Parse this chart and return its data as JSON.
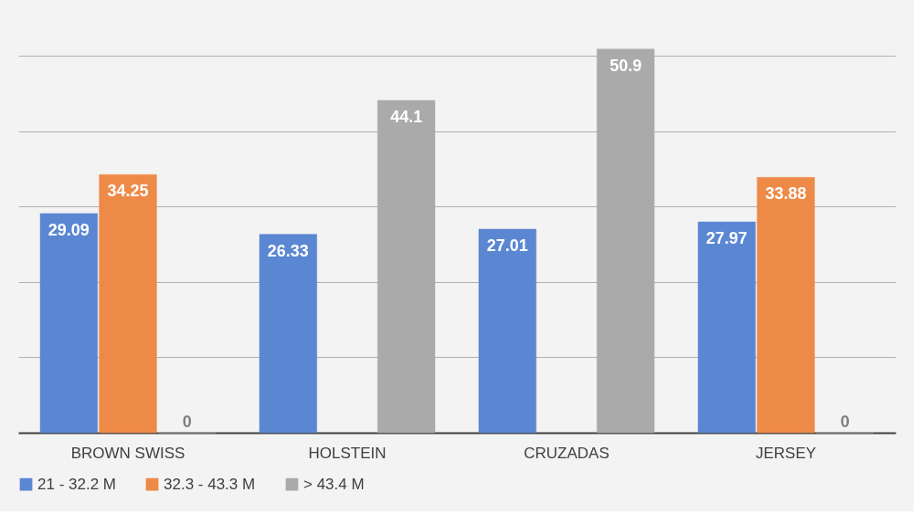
{
  "chart_data": {
    "type": "bar",
    "categories": [
      "BROWN SWISS",
      "HOLSTEIN",
      "CRUZADAS",
      "JERSEY"
    ],
    "series": [
      {
        "name": "21 - 32.2 M",
        "color": "#5b87d2",
        "values": [
          29.09,
          26.33,
          27.01,
          27.97
        ]
      },
      {
        "name": "32.3 - 43.3 M",
        "color": "#ee8a47",
        "values": [
          34.25,
          null,
          null,
          33.88
        ]
      },
      {
        "name": "> 43.4 M",
        "color": "#aaaaaa",
        "values": [
          0,
          44.1,
          50.9,
          0
        ]
      }
    ],
    "yticks": [
      {
        "value": 0,
        "label": null
      },
      {
        "value": 10,
        "label": null
      },
      {
        "value": 20,
        "label": null
      },
      {
        "value": 30,
        "label": null
      },
      {
        "value": 40,
        "label": null
      },
      {
        "value": 50,
        "label": null
      }
    ],
    "grid": "y",
    "legend": "bottom",
    "tick_labels": "x",
    "data_labels": true
  }
}
